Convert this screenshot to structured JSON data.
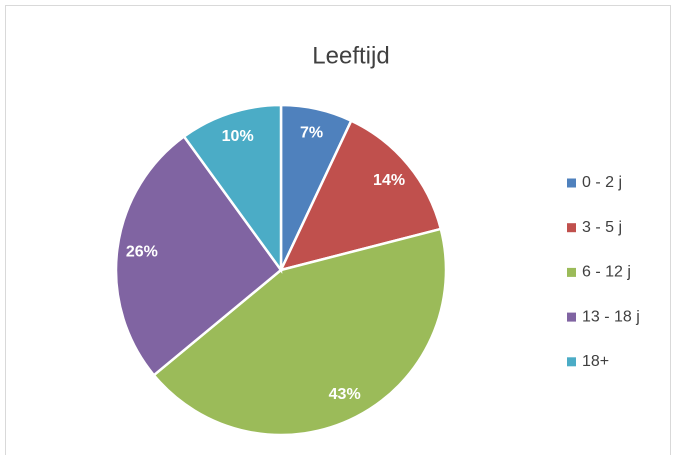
{
  "chart_data": {
    "type": "pie",
    "title": "Leeftijd",
    "categories": [
      "0 - 2 j",
      "3 - 5 j",
      "6 - 12 j",
      "13 - 18 j",
      "18+"
    ],
    "values": [
      7,
      14,
      43,
      26,
      10
    ],
    "value_labels": [
      "7%",
      "14%",
      "43%",
      "26%",
      "10%"
    ],
    "colors": [
      "#4F81BD",
      "#C0504D",
      "#9BBB59",
      "#8064A2",
      "#4BACC6"
    ],
    "legend": "right"
  }
}
